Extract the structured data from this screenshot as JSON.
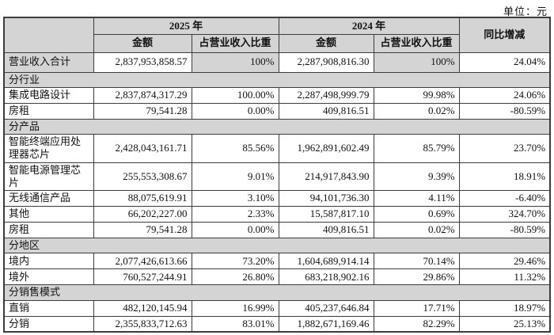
{
  "unit_label": "单位：元",
  "colors": {
    "header_bg": "#d4d4d4",
    "border": "#3c3c3e",
    "page_bg": "#ffffff"
  },
  "table": {
    "col_headers": {
      "year_2025": "2025 年",
      "year_2024": "2024 年",
      "amount": "金额",
      "ratio": "占营业收入比重",
      "yoy": "同比增减"
    },
    "rows": [
      {
        "kind": "total",
        "label": "营业收入合计",
        "v2025": "2,837,953,858.57",
        "p2025": "100%",
        "v2024": "2,287,908,816.30",
        "p2024": "100%",
        "yoy": "24.04%"
      },
      {
        "kind": "section",
        "label": "分行业"
      },
      {
        "kind": "data",
        "label": "集成电路设计",
        "v2025": "2,837,874,317.29",
        "p2025": "100.00%",
        "v2024": "2,287,498,999.79",
        "p2024": "99.98%",
        "yoy": "24.06%"
      },
      {
        "kind": "data",
        "label": "房租",
        "v2025": "79,541.28",
        "p2025": "0.00%",
        "v2024": "409,816.51",
        "p2024": "0.02%",
        "yoy": "-80.59%"
      },
      {
        "kind": "section",
        "label": "分产品"
      },
      {
        "kind": "data2",
        "label": "智能终端应用处理器芯片",
        "v2025": "2,428,043,161.71",
        "p2025": "85.56%",
        "v2024": "1,962,891,602.49",
        "p2024": "85.79%",
        "yoy": "23.70%"
      },
      {
        "kind": "data2",
        "label": "智能电源管理芯片",
        "v2025": "255,553,308.67",
        "p2025": "9.01%",
        "v2024": "214,917,843.90",
        "p2024": "9.39%",
        "yoy": "18.91%"
      },
      {
        "kind": "data",
        "label": "无线通信产品",
        "v2025": "88,075,619.91",
        "p2025": "3.10%",
        "v2024": "94,101,736.30",
        "p2024": "4.11%",
        "yoy": "-6.40%"
      },
      {
        "kind": "data",
        "label": "其他",
        "v2025": "66,202,227.00",
        "p2025": "2.33%",
        "v2024": "15,587,817.10",
        "p2024": "0.69%",
        "yoy": "324.70%"
      },
      {
        "kind": "data",
        "label": "房租",
        "v2025": "79,541.28",
        "p2025": "0.00%",
        "v2024": "409,816.51",
        "p2024": "0.02%",
        "yoy": "-80.59%"
      },
      {
        "kind": "section",
        "label": "分地区"
      },
      {
        "kind": "data",
        "label": "境内",
        "v2025": "2,077,426,613.66",
        "p2025": "73.20%",
        "v2024": "1,604,689,914.14",
        "p2024": "70.14%",
        "yoy": "29.46%"
      },
      {
        "kind": "data",
        "label": "境外",
        "v2025": "760,527,244.91",
        "p2025": "26.80%",
        "v2024": "683,218,902.16",
        "p2024": "29.86%",
        "yoy": "11.32%"
      },
      {
        "kind": "section",
        "label": "分销售模式"
      },
      {
        "kind": "data",
        "label": "直销",
        "v2025": "482,120,145.94",
        "p2025": "16.99%",
        "v2024": "405,237,646.84",
        "p2024": "17.71%",
        "yoy": "18.97%"
      },
      {
        "kind": "data",
        "label": "分销",
        "v2025": "2,355,833,712.63",
        "p2025": "83.01%",
        "v2024": "1,882,671,169.46",
        "p2024": "82.29%",
        "yoy": "25.13%"
      }
    ]
  }
}
